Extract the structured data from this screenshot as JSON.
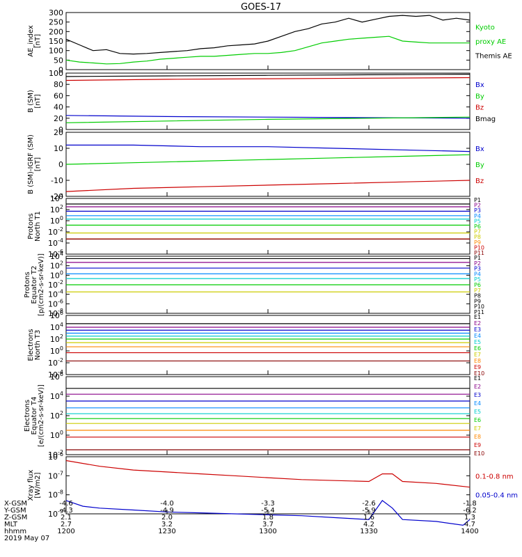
{
  "title": "GOES-17",
  "footer": {
    "row_labels": [
      "X-GSM",
      "Y-GSM",
      "Z-GSM",
      "MLT",
      "hhmm",
      "2019 May 07"
    ],
    "columns": [
      [
        "-4.6",
        "-4.3",
        "2.1",
        "2.7",
        "1200"
      ],
      [
        "-4.0",
        "-4.9",
        "2.0",
        "3.2",
        "1230"
      ],
      [
        "-3.3",
        "-5.4",
        "1.8",
        "3.7",
        "1300"
      ],
      [
        "-2.6",
        "-5.9",
        "1.6",
        "4.2",
        "1330"
      ],
      [
        "-1.8",
        "-6.2",
        "1.3",
        "4.7",
        "1400"
      ]
    ]
  },
  "chart_data": [
    {
      "type": "line",
      "ylabel": [
        "AE_index",
        "[nT]"
      ],
      "ylim": [
        0,
        300
      ],
      "yticks": [
        "0",
        "50",
        "100",
        "150",
        "200",
        "250",
        "300"
      ],
      "legend": [
        "Kyoto",
        "proxy AE",
        "Themis AE"
      ],
      "series": [
        {
          "name": "Themis AE",
          "color": "#000000",
          "x": [
            0,
            4,
            8,
            12,
            16,
            20,
            24,
            28,
            32,
            36,
            40,
            44,
            48,
            52,
            56,
            60,
            64,
            68,
            72,
            76,
            80,
            84,
            88,
            92,
            96,
            100,
            104,
            108,
            112,
            116,
            120
          ],
          "y": [
            160,
            130,
            100,
            105,
            85,
            82,
            85,
            90,
            95,
            100,
            110,
            115,
            125,
            130,
            135,
            150,
            175,
            200,
            215,
            240,
            250,
            270,
            250,
            265,
            280,
            285,
            280,
            285,
            260,
            270,
            260
          ]
        },
        {
          "name": "Kyoto proxy AE",
          "color": "#00cc00",
          "x": [
            0,
            4,
            8,
            12,
            16,
            20,
            24,
            28,
            32,
            36,
            40,
            44,
            48,
            52,
            56,
            60,
            64,
            68,
            72,
            76,
            80,
            84,
            88,
            92,
            96,
            100,
            104,
            108,
            112,
            116,
            120
          ],
          "y": [
            50,
            40,
            35,
            30,
            32,
            40,
            45,
            55,
            60,
            65,
            70,
            70,
            75,
            80,
            85,
            85,
            90,
            100,
            120,
            140,
            150,
            160,
            165,
            170,
            175,
            150,
            145,
            140,
            140,
            140,
            140
          ]
        }
      ]
    },
    {
      "type": "line",
      "ylabel": [
        "B (SM)",
        "[nT]"
      ],
      "ylim": [
        0,
        100
      ],
      "yticks": [
        "0",
        "20",
        "40",
        "60",
        "80",
        "100"
      ],
      "legend": [
        "Bx",
        "By",
        "Bz",
        "Bmag"
      ],
      "series": [
        {
          "name": "Bmag",
          "color": "#000000",
          "x": [
            0,
            30,
            60,
            90,
            120
          ],
          "y": [
            94,
            95,
            96,
            97,
            98
          ]
        },
        {
          "name": "Bz",
          "color": "#cc0000",
          "x": [
            0,
            30,
            60,
            90,
            120
          ],
          "y": [
            87,
            89,
            90,
            91,
            92
          ]
        },
        {
          "name": "Bx",
          "color": "#0000cc",
          "x": [
            0,
            30,
            60,
            90,
            120
          ],
          "y": [
            25,
            23,
            22,
            21,
            20
          ]
        },
        {
          "name": "By",
          "color": "#00cc00",
          "x": [
            0,
            30,
            60,
            90,
            120
          ],
          "y": [
            12,
            15,
            18,
            20,
            22
          ]
        }
      ]
    },
    {
      "type": "line",
      "ylabel": [
        "B (SM)-IGRF (SM)",
        "[nT]"
      ],
      "ylim": [
        -20,
        20
      ],
      "yticks": [
        "-20",
        "-10",
        "0",
        "10",
        "20"
      ],
      "legend": [
        "Bx",
        "By",
        "Bz"
      ],
      "series": [
        {
          "name": "Bx",
          "color": "#0000cc",
          "x": [
            0,
            20,
            40,
            60,
            80,
            100,
            120
          ],
          "y": [
            12,
            12,
            11,
            11,
            10,
            9,
            8
          ]
        },
        {
          "name": "By",
          "color": "#00cc00",
          "x": [
            0,
            20,
            40,
            60,
            80,
            100,
            120
          ],
          "y": [
            0,
            1,
            2,
            3,
            4,
            5,
            6
          ]
        },
        {
          "name": "Bz",
          "color": "#cc0000",
          "x": [
            0,
            20,
            40,
            60,
            80,
            100,
            120
          ],
          "y": [
            -17,
            -15,
            -14,
            -13,
            -12,
            -11,
            -10
          ]
        }
      ]
    },
    {
      "type": "line",
      "log": true,
      "ylabel": [
        "Protons",
        "North T1"
      ],
      "yticks": [
        "10-6",
        "10-4",
        "10-2",
        "100",
        "102",
        "104"
      ],
      "legend": [
        "P1",
        "P2",
        "P3",
        "P4",
        "P5",
        "P6",
        "P7",
        "P8",
        "P9",
        "P10",
        "P11"
      ],
      "series": [
        {
          "name": "P1",
          "color": "#000000",
          "log": 3
        },
        {
          "name": "P2",
          "color": "#880088",
          "log": 2.5
        },
        {
          "name": "P3",
          "color": "#0000cc",
          "log": 1.7
        },
        {
          "name": "P4",
          "color": "#0088ff",
          "log": 0.9
        },
        {
          "name": "P5",
          "color": "#00cccc",
          "log": 0.3
        },
        {
          "name": "P6",
          "color": "#00cc00",
          "log": -0.8
        },
        {
          "name": "P7",
          "color": "#cccc00",
          "log": -2.2
        },
        {
          "name": "P8",
          "color": "#cccc00",
          "log": -3.3
        },
        {
          "name": "P9",
          "color": "#ff8800",
          "log": -3.3
        },
        {
          "name": "P10",
          "color": "#cc0000",
          "log": -3.3
        },
        {
          "name": "P11",
          "color": "#880000",
          "log": -3.3
        }
      ]
    },
    {
      "type": "line",
      "log": true,
      "ylabel": [
        "Protons",
        "Equator T2",
        "[p/(cm2-s-sr-keV)]"
      ],
      "yticks": [
        "10-8",
        "10-6",
        "10-4",
        "10-2",
        "100",
        "102",
        "104"
      ],
      "legend": [
        "P1",
        "P2",
        "P3",
        "P4",
        "P5",
        "P6",
        "P7",
        "P8",
        "P9",
        "P10",
        "P11"
      ],
      "series": [
        {
          "name": "P1",
          "color": "#000000",
          "log": 3.5
        },
        {
          "name": "P2",
          "color": "#880088",
          "log": 2.7
        },
        {
          "name": "P3",
          "color": "#0000cc",
          "log": 1.5
        },
        {
          "name": "P4",
          "color": "#0088ff",
          "log": 0.3
        },
        {
          "name": "P5",
          "color": "#00cccc",
          "log": -0.7
        },
        {
          "name": "P6",
          "color": "#00cc00",
          "log": -2.0
        },
        {
          "name": "P7",
          "color": "#cccc00",
          "log": -3.5
        }
      ]
    },
    {
      "type": "line",
      "log": true,
      "ylabel": [
        "Electrons",
        "North T3"
      ],
      "yticks": [
        "10-4",
        "10-2",
        "100",
        "102",
        "104",
        "106"
      ],
      "legend": [
        "E1",
        "E2",
        "E3",
        "E4",
        "E5",
        "E6",
        "E7",
        "E8",
        "E9",
        "E10"
      ],
      "series": [
        {
          "name": "E1",
          "color": "#000000",
          "log": 4.6
        },
        {
          "name": "E2",
          "color": "#880088",
          "log": 4.0
        },
        {
          "name": "E3",
          "color": "#0000cc",
          "log": 3.5
        },
        {
          "name": "E4",
          "color": "#0088ff",
          "log": 3.0
        },
        {
          "name": "E5",
          "color": "#00cccc",
          "log": 2.5
        },
        {
          "name": "E6",
          "color": "#00cc00",
          "log": 2.0
        },
        {
          "name": "E7",
          "color": "#cccc00",
          "log": 1.4
        },
        {
          "name": "E8",
          "color": "#ff8800",
          "log": 0.7
        },
        {
          "name": "E9",
          "color": "#cc0000",
          "log": -0.3
        },
        {
          "name": "E10",
          "color": "#880000",
          "log": -1.7
        }
      ]
    },
    {
      "type": "line",
      "log": true,
      "ylabel": [
        "Electrons",
        "Equator T4",
        "[e/(cm2-s-sr-keV)]"
      ],
      "yticks": [
        "10-2",
        "100",
        "102",
        "104",
        "106"
      ],
      "legend": [
        "E1",
        "E2",
        "E3",
        "E4",
        "E5",
        "E6",
        "E7",
        "E8",
        "E9",
        "E10"
      ],
      "series": [
        {
          "name": "E1",
          "color": "#000000",
          "log": 4.8
        },
        {
          "name": "E2",
          "color": "#880088",
          "log": 4.2
        },
        {
          "name": "E3",
          "color": "#0000cc",
          "log": 3.5
        },
        {
          "name": "E4",
          "color": "#0088ff",
          "log": 2.8
        },
        {
          "name": "E5",
          "color": "#00cccc",
          "log": 2.2
        },
        {
          "name": "E6",
          "color": "#00cc00",
          "log": 1.7
        },
        {
          "name": "E7",
          "color": "#cccc00",
          "log": 1.2
        },
        {
          "name": "E8",
          "color": "#ff8800",
          "log": 0.5
        },
        {
          "name": "E9",
          "color": "#cc0000",
          "log": -0.2
        },
        {
          "name": "E10",
          "color": "#880000",
          "log": -1.5
        }
      ]
    },
    {
      "type": "line",
      "log": true,
      "ylabel": [
        "Xray flux",
        "[W/m2]"
      ],
      "yticks": [
        "10-9",
        "10-8",
        "10-7",
        "10-6"
      ],
      "legend": [
        "0.1-0.8 nm",
        "0.05-0.4 nm"
      ],
      "series": [
        {
          "name": "0.1-0.8 nm",
          "color": "#cc0000",
          "x": [
            0,
            10,
            20,
            30,
            40,
            50,
            60,
            70,
            80,
            90,
            94,
            97,
            100,
            110,
            120
          ],
          "y": [
            -6.2,
            -6.5,
            -6.7,
            -6.8,
            -6.9,
            -7.0,
            -7.1,
            -7.2,
            -7.25,
            -7.3,
            -6.9,
            -6.9,
            -7.3,
            -7.4,
            -7.6
          ]
        },
        {
          "name": "0.05-0.4 nm",
          "color": "#0000cc",
          "x": [
            0,
            5,
            10,
            20,
            30,
            40,
            50,
            60,
            70,
            80,
            90,
            94,
            97,
            100,
            110,
            118,
            120
          ],
          "y": [
            -8.3,
            -8.6,
            -8.7,
            -8.8,
            -8.9,
            -8.95,
            -9.0,
            -9.05,
            -9.1,
            -9.2,
            -9.3,
            -8.3,
            -8.7,
            -9.3,
            -9.4,
            -9.6,
            -9.3
          ]
        }
      ]
    }
  ]
}
